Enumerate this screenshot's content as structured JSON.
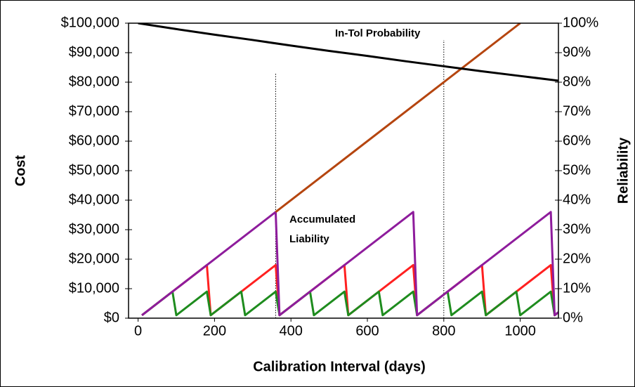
{
  "chart_data": {
    "type": "line",
    "xlabel": "Calibration Interval (days)",
    "ylabel": "Cost",
    "y2label": "Reliability",
    "xlim": [
      -25,
      1100
    ],
    "xticks": [
      0,
      200,
      400,
      600,
      800,
      1000
    ],
    "ylim": [
      0,
      100000
    ],
    "yticks": [
      {
        "value": 0,
        "label": "$0"
      },
      {
        "value": 10000,
        "label": "$10,000"
      },
      {
        "value": 20000,
        "label": "$20,000"
      },
      {
        "value": 30000,
        "label": "$30,000"
      },
      {
        "value": 40000,
        "label": "$40,000"
      },
      {
        "value": 50000,
        "label": "$50,000"
      },
      {
        "value": 60000,
        "label": "$60,000"
      },
      {
        "value": 70000,
        "label": "$70,000"
      },
      {
        "value": 80000,
        "label": "$80,000"
      },
      {
        "value": 90000,
        "label": "$90,000"
      },
      {
        "value": 100000,
        "label": "$100,000"
      }
    ],
    "y2lim": [
      0,
      100
    ],
    "y2ticks": [
      {
        "value": 0,
        "label": "0%"
      },
      {
        "value": 10,
        "label": "10%"
      },
      {
        "value": 20,
        "label": "20%"
      },
      {
        "value": 30,
        "label": "30%"
      },
      {
        "value": 40,
        "label": "40%"
      },
      {
        "value": 50,
        "label": "50%"
      },
      {
        "value": 60,
        "label": "60%"
      },
      {
        "value": 70,
        "label": "70%"
      },
      {
        "value": 80,
        "label": "80%"
      },
      {
        "value": 90,
        "label": "90%"
      },
      {
        "value": 100,
        "label": "100%"
      }
    ],
    "grid": false,
    "series": [
      {
        "color": "#ff2020",
        "x": [
          10,
          180,
          190,
          360,
          370,
          540,
          550,
          720,
          730,
          900,
          910,
          1080,
          1090,
          1100
        ],
        "values": [
          1000,
          18000,
          1000,
          18000,
          1000,
          18000,
          1000,
          18000,
          1000,
          18000,
          1000,
          18000,
          1000,
          2000
        ]
      },
      {
        "color": "#1e8c1e",
        "x": [
          10,
          90,
          100,
          180,
          190,
          270,
          280,
          360,
          370,
          450,
          460,
          540,
          550,
          630,
          640,
          720,
          730,
          810,
          820,
          900,
          910,
          990,
          1000,
          1080,
          1090,
          1100
        ],
        "values": [
          1000,
          9000,
          1000,
          9000,
          1000,
          9000,
          1000,
          9000,
          1000,
          9000,
          1000,
          9000,
          1000,
          9000,
          1000,
          9000,
          1000,
          9000,
          1000,
          9000,
          1000,
          9000,
          1000,
          9000,
          1000,
          2000
        ]
      },
      {
        "color": "#8e1c9c",
        "x": [
          10,
          360,
          370,
          720,
          730,
          1080,
          1090,
          1100
        ],
        "values": [
          1000,
          36000,
          1000,
          36000,
          1000,
          36000,
          1000,
          2000
        ]
      },
      {
        "color": "#b5450f",
        "x": [
          360,
          1000
        ],
        "values": [
          36000,
          100000
        ]
      },
      {
        "color": "#000000",
        "axis": "y2",
        "x": [
          0,
          100,
          200,
          300,
          400,
          500,
          600,
          700,
          800,
          900,
          1000,
          1100
        ],
        "values": [
          100,
          98.0,
          96.1,
          94.3,
          92.4,
          90.6,
          88.9,
          87.1,
          85.4,
          83.7,
          82.1,
          80.5
        ]
      }
    ],
    "vlines": [
      360,
      800
    ],
    "annotations": [
      "In-Tol Probability",
      "Accumulated",
      "Liability"
    ]
  }
}
